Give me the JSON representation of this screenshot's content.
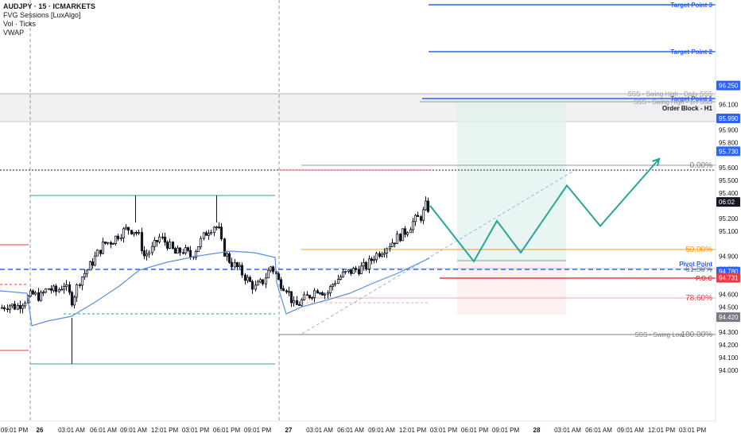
{
  "legend": {
    "symbol": "AUDJPY · 15 · ICMARKETS",
    "indicators": [
      "FVG Sessions [LuxAlgo]",
      "Vol · Ticks",
      "VWAP"
    ]
  },
  "chart_data": {
    "type": "candlestick",
    "y_axis": {
      "range": [
        93.95,
        96.3
      ],
      "ticks": [
        "96.100",
        "95.900",
        "95.800",
        "95.600",
        "95.500",
        "95.400",
        "95.200",
        "95.100",
        "94.900",
        "94.800",
        "94.600",
        "94.500",
        "94.300",
        "94.200",
        "94.100",
        "94.000"
      ],
      "tick_values": [
        96.1,
        95.9,
        95.8,
        95.6,
        95.5,
        95.4,
        95.2,
        95.1,
        94.9,
        94.8,
        94.6,
        94.5,
        94.3,
        94.2,
        94.1,
        94.0
      ]
    },
    "x_axis": {
      "ticks": [
        "09:01 PM",
        "26",
        "03:01 AM",
        "06:01 AM",
        "09:01 AM",
        "12:01 PM",
        "03:01 PM",
        "06:01 PM",
        "09:01 PM",
        "27",
        "03:01 AM",
        "06:01 AM",
        "09:01 AM",
        "12:01 PM",
        "03:01 PM",
        "06:01 PM",
        "09:01 PM",
        "28",
        "03:01 AM",
        "06:01 AM",
        "09:01 AM",
        "12:01 PM",
        "03:01 PM"
      ],
      "bold_ticks": [
        "26",
        "27",
        "28"
      ]
    },
    "price_tags": [
      {
        "label": "96.250",
        "value": 96.25,
        "color": "#2962ff"
      },
      {
        "label": "95.990",
        "value": 95.99,
        "color": "#2962ff"
      },
      {
        "label": "95.730",
        "value": 95.73,
        "color": "#2962ff"
      },
      {
        "label": "06:02",
        "value": 95.33,
        "color": "#131722"
      },
      {
        "label": "94.780",
        "value": 94.78,
        "color": "#2962ff"
      },
      {
        "label": "94.731",
        "value": 94.731,
        "color": "#f23645"
      },
      {
        "label": "94.420",
        "value": 94.42,
        "color": "#787b86"
      }
    ],
    "annotations": [
      {
        "text": "Target Point 3",
        "color": "#2962ff"
      },
      {
        "text": "Target Point 2",
        "color": "#2962ff"
      },
      {
        "text": "Target Point 1",
        "color": "#2962ff"
      },
      {
        "text": "SSS - Swing High - Daily SSS",
        "color": "#9598a1"
      },
      {
        "text": "SSS - Swing High - 1H SSS",
        "color": "#9598a1"
      },
      {
        "text": "Order Block - H1",
        "color": "#131722"
      },
      {
        "text": "0.00%",
        "color": "#787b86"
      },
      {
        "text": "50.00%",
        "color": "#ff9800"
      },
      {
        "text": "Pivot Point",
        "color": "#2962ff"
      },
      {
        "text": "61.80%",
        "color": "#787b86"
      },
      {
        "text": "P.O.C",
        "color": "#f23645"
      },
      {
        "text": "78.60%",
        "color": "#f23645"
      },
      {
        "text": "SSS - Swing Low",
        "color": "#787b86"
      },
      {
        "text": "100.00%",
        "color": "#787b86"
      }
    ],
    "series": [
      {
        "name": "AUDJPY",
        "close_path": [
          [
            0,
            94.49
          ],
          [
            10,
            94.52
          ],
          [
            20,
            94.5
          ],
          [
            30,
            94.55
          ],
          [
            40,
            94.6
          ],
          [
            50,
            94.58
          ],
          [
            60,
            94.65
          ],
          [
            70,
            94.62
          ],
          [
            80,
            94.68
          ],
          [
            90,
            94.55
          ],
          [
            100,
            94.72
          ],
          [
            110,
            94.8
          ],
          [
            120,
            94.9
          ],
          [
            130,
            95.0
          ],
          [
            140,
            95.02
          ],
          [
            150,
            95.08
          ],
          [
            160,
            95.12
          ],
          [
            170,
            95.1
          ],
          [
            175,
            95.05
          ],
          [
            180,
            94.9
          ],
          [
            190,
            94.95
          ],
          [
            200,
            95.05
          ],
          [
            210,
            95.0
          ],
          [
            220,
            94.92
          ],
          [
            230,
            94.95
          ],
          [
            240,
            94.9
          ],
          [
            250,
            95.0
          ],
          [
            260,
            95.1
          ],
          [
            270,
            95.15
          ],
          [
            275,
            95.1
          ],
          [
            280,
            94.95
          ],
          [
            290,
            94.85
          ],
          [
            300,
            94.8
          ],
          [
            310,
            94.72
          ],
          [
            320,
            94.65
          ],
          [
            330,
            94.7
          ],
          [
            340,
            94.82
          ],
          [
            345,
            94.78
          ],
          [
            350,
            94.7
          ],
          [
            360,
            94.65
          ],
          [
            370,
            94.5
          ],
          [
            380,
            94.55
          ],
          [
            390,
            94.6
          ],
          [
            400,
            94.65
          ],
          [
            410,
            94.6
          ],
          [
            420,
            94.7
          ],
          [
            430,
            94.75
          ],
          [
            440,
            94.78
          ],
          [
            450,
            94.8
          ],
          [
            460,
            94.82
          ],
          [
            470,
            94.9
          ],
          [
            480,
            94.95
          ],
          [
            490,
            95.0
          ],
          [
            500,
            95.05
          ],
          [
            510,
            95.1
          ],
          [
            520,
            95.18
          ],
          [
            530,
            95.22
          ],
          [
            535,
            95.3
          ],
          [
            540,
            95.27
          ]
        ]
      },
      {
        "name": "VWAP",
        "values": []
      }
    ],
    "projection": {
      "path": [
        [
          541,
          95.3
        ],
        [
          596,
          94.86
        ],
        [
          625,
          95.18
        ],
        [
          655,
          94.93
        ],
        [
          713,
          95.46
        ],
        [
          755,
          95.14
        ],
        [
          829,
          95.67
        ]
      ],
      "color": "#26a69a"
    }
  }
}
